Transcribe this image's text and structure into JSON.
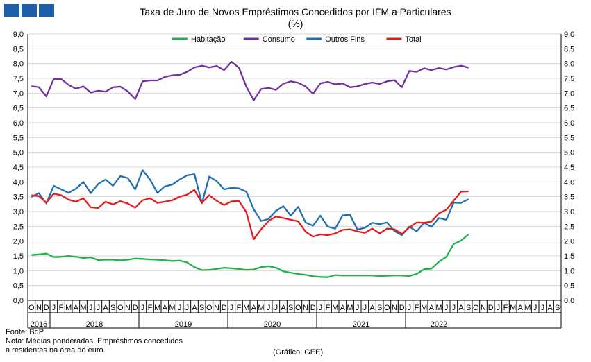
{
  "chart_data": {
    "type": "line",
    "title": "Taxa de Juro de Novos Empréstimos Concedidos por IFM a Particulares",
    "subtitle": "(%)",
    "ylim": [
      0,
      9
    ],
    "y_ticks": [
      "0,0",
      "0,5",
      "1,0",
      "1,5",
      "2,0",
      "2,5",
      "3,0",
      "3,5",
      "4,0",
      "4,5",
      "5,0",
      "5,5",
      "6,0",
      "6,5",
      "7,0",
      "7,5",
      "8,0",
      "8,5",
      "9,0"
    ],
    "grid": true,
    "legend_position": "top",
    "month_labels": [
      "O",
      "N",
      "D",
      "J",
      "F",
      "M",
      "A",
      "M",
      "J",
      "J",
      "A",
      "S",
      "O",
      "N",
      "D",
      "J",
      "F",
      "M",
      "A",
      "M",
      "J",
      "J",
      "A",
      "S",
      "O",
      "N",
      "D",
      "J",
      "F",
      "M",
      "A",
      "M",
      "J",
      "J",
      "A",
      "S",
      "O",
      "N",
      "D",
      "J",
      "F",
      "M",
      "A",
      "M",
      "J",
      "J",
      "A",
      "S",
      "O",
      "N",
      "D",
      "J",
      "F",
      "M",
      "A",
      "M",
      "J",
      "J",
      "A",
      "S",
      "O",
      "N",
      "D",
      "J",
      "F",
      "M",
      "A",
      "M",
      "J",
      "J",
      "A",
      "S"
    ],
    "years": [
      {
        "label": "2016",
        "start": 0,
        "count": 3
      },
      {
        "label": "2018",
        "start": 3,
        "count": 12
      },
      {
        "label": "2019",
        "start": 15,
        "count": 12
      },
      {
        "label": "2020",
        "start": 27,
        "count": 12
      },
      {
        "label": "2021",
        "start": 39,
        "count": 12
      },
      {
        "label": "2022",
        "start": 51,
        "count": 9
      }
    ],
    "series": [
      {
        "name": "Habitação",
        "color": "#22b14c",
        "values": [
          1.53,
          1.55,
          1.58,
          1.46,
          1.47,
          1.5,
          1.47,
          1.43,
          1.45,
          1.36,
          1.37,
          1.37,
          1.35,
          1.37,
          1.41,
          1.4,
          1.38,
          1.37,
          1.35,
          1.33,
          1.34,
          1.28,
          1.12,
          1.02,
          1.03,
          1.06,
          1.1,
          1.08,
          1.06,
          1.03,
          1.04,
          1.12,
          1.15,
          1.1,
          0.98,
          0.93,
          0.89,
          0.86,
          0.81,
          0.79,
          0.78,
          0.85,
          0.84,
          0.84,
          0.84,
          0.84,
          0.84,
          0.82,
          0.83,
          0.84,
          0.84,
          0.82,
          0.89,
          1.05,
          1.07,
          1.3,
          1.47,
          1.9,
          2.02,
          2.23
        ]
      },
      {
        "name": "Consumo",
        "color": "#7030a0",
        "values": [
          7.24,
          7.2,
          6.89,
          7.48,
          7.48,
          7.28,
          7.15,
          7.23,
          7.02,
          7.08,
          7.05,
          7.2,
          7.22,
          7.06,
          6.8,
          7.4,
          7.43,
          7.43,
          7.55,
          7.6,
          7.62,
          7.72,
          7.87,
          7.93,
          7.87,
          7.92,
          7.78,
          8.06,
          7.86,
          7.22,
          6.76,
          7.14,
          7.18,
          7.11,
          7.32,
          7.4,
          7.35,
          7.23,
          6.98,
          7.33,
          7.38,
          7.3,
          7.33,
          7.2,
          7.23,
          7.31,
          7.36,
          7.31,
          7.4,
          7.44,
          7.2,
          7.75,
          7.72,
          7.84,
          7.78,
          7.85,
          7.8,
          7.88,
          7.93,
          7.86
        ]
      },
      {
        "name": "Outros Fins",
        "color": "#1f6fb5",
        "values": [
          3.49,
          3.62,
          3.27,
          3.87,
          3.75,
          3.63,
          3.77,
          4.0,
          3.62,
          3.93,
          4.08,
          3.87,
          4.2,
          4.13,
          3.75,
          4.4,
          4.08,
          3.63,
          3.85,
          3.91,
          4.08,
          4.22,
          4.26,
          3.28,
          4.18,
          4.03,
          3.75,
          3.8,
          3.78,
          3.67,
          3.08,
          2.68,
          2.75,
          3.02,
          3.18,
          2.86,
          3.16,
          2.63,
          2.52,
          2.86,
          2.49,
          2.42,
          2.87,
          2.89,
          2.39,
          2.45,
          2.62,
          2.57,
          2.63,
          2.34,
          2.2,
          2.49,
          2.33,
          2.62,
          2.48,
          2.78,
          2.72,
          3.3,
          3.29,
          3.42
        ]
      },
      {
        "name": "Total",
        "color": "#e41a1c",
        "values": [
          3.55,
          3.52,
          3.3,
          3.6,
          3.55,
          3.4,
          3.33,
          3.45,
          3.14,
          3.12,
          3.33,
          3.24,
          3.35,
          3.27,
          3.13,
          3.38,
          3.45,
          3.29,
          3.33,
          3.38,
          3.5,
          3.57,
          3.73,
          3.29,
          3.55,
          3.36,
          3.22,
          3.34,
          3.36,
          2.98,
          2.06,
          2.4,
          2.68,
          2.83,
          2.78,
          2.72,
          2.67,
          2.32,
          2.15,
          2.23,
          2.2,
          2.26,
          2.38,
          2.4,
          2.33,
          2.28,
          2.42,
          2.26,
          2.42,
          2.4,
          2.24,
          2.46,
          2.63,
          2.62,
          2.66,
          2.94,
          3.06,
          3.37,
          3.67,
          3.68
        ]
      }
    ]
  },
  "footer": {
    "source": "Fonte: BdP",
    "note_line1": "Nota: Médias ponderadas. Empréstimos concedidos",
    "note_line2": "a residentes na área do euro.",
    "credit": "(Gráfico: GEE)"
  }
}
